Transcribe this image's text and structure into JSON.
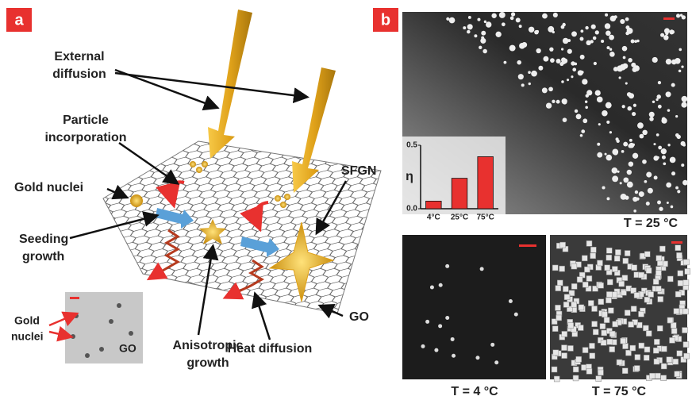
{
  "panel_a": {
    "label": "a",
    "external_diffusion": [
      "External",
      "diffusion"
    ],
    "particle_incorporation": [
      "Particle",
      "incorporation"
    ],
    "gold_nuclei": "Gold nuclei",
    "sfgn": "SFGN",
    "seeding_growth": [
      "Seeding",
      "growth"
    ],
    "anisotropic_growth": [
      "Anisotropic",
      "growth"
    ],
    "heat_diffusion": "Heat diffusion",
    "go": "GO",
    "inset": {
      "gold_nuclei": [
        "Gold",
        "nuclei"
      ],
      "go": "GO"
    }
  },
  "panel_b": {
    "label": "b",
    "t25": "T = 25 °C",
    "t4": "T = 4 °C",
    "t75": "T = 75 °C"
  },
  "chart_data": {
    "type": "bar",
    "ylabel": "η",
    "categories": [
      "4°C",
      "25°C",
      "75°C"
    ],
    "values": [
      0.06,
      0.24,
      0.41
    ],
    "color": "#e8312f",
    "ylim": [
      0,
      0.5
    ],
    "yticks": [
      {
        "value": 0,
        "label": "0.0"
      },
      0.5
    ]
  }
}
